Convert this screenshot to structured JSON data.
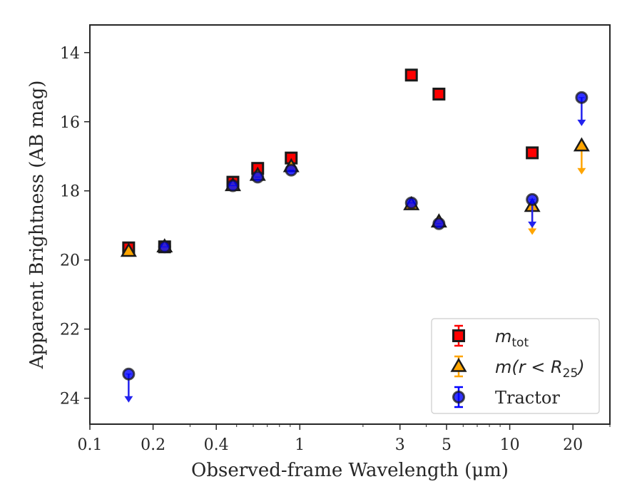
{
  "chart_data": {
    "type": "scatter",
    "title": "",
    "xlabel": "Observed-frame Wavelength (μm)",
    "ylabel": "Apparent Brightness (AB mag)",
    "xscale": "log",
    "xlim": [
      0.1,
      30
    ],
    "ylim": [
      24.75,
      13.2
    ],
    "y_inverted": true,
    "x_ticks": [
      0.1,
      0.2,
      0.4,
      1,
      3,
      5,
      10,
      20
    ],
    "x_tick_labels": [
      "0.1",
      "0.2",
      "0.4",
      "1",
      "3",
      "5",
      "10",
      "20"
    ],
    "y_ticks": [
      14,
      16,
      18,
      20,
      22,
      24
    ],
    "y_tick_labels": [
      "14",
      "16",
      "18",
      "20",
      "22",
      "24"
    ],
    "grid": false,
    "legend_position": "lower-right",
    "series": [
      {
        "name": "m_tot",
        "legend_math": "m",
        "legend_sub": "tot",
        "marker": "square",
        "color": "#ff0000",
        "edge_color": "#1a1a1a",
        "points": [
          {
            "x": 0.153,
            "y": 19.65
          },
          {
            "x": 0.227,
            "y": 19.62
          },
          {
            "x": 0.48,
            "y": 17.75
          },
          {
            "x": 0.63,
            "y": 17.35
          },
          {
            "x": 0.91,
            "y": 17.05
          },
          {
            "x": 3.4,
            "y": 14.65
          },
          {
            "x": 4.6,
            "y": 15.2
          },
          {
            "x": 12.8,
            "y": 16.9
          }
        ]
      },
      {
        "name": "m(r < R25)",
        "legend_math": "m(r < R",
        "legend_sub": "25",
        "legend_close": ")",
        "marker": "triangle",
        "color": "#ffa500",
        "edge_color": "#1a1a1a",
        "points": [
          {
            "x": 0.153,
            "y": 19.75
          },
          {
            "x": 0.227,
            "y": 19.62
          },
          {
            "x": 0.48,
            "y": 17.85
          },
          {
            "x": 0.63,
            "y": 17.55
          },
          {
            "x": 0.91,
            "y": 17.3
          },
          {
            "x": 3.4,
            "y": 18.4
          },
          {
            "x": 4.6,
            "y": 18.9
          },
          {
            "x": 12.8,
            "y": 18.45,
            "upper_limit": true
          },
          {
            "x": 22.0,
            "y": 16.7,
            "upper_limit": true
          }
        ]
      },
      {
        "name": "Tractor",
        "marker": "circle",
        "color": "#0000ff",
        "edge_color": "#1a1a1a",
        "points": [
          {
            "x": 0.153,
            "y": 23.3,
            "upper_limit": true
          },
          {
            "x": 0.227,
            "y": 19.62
          },
          {
            "x": 0.48,
            "y": 17.85
          },
          {
            "x": 0.63,
            "y": 17.6
          },
          {
            "x": 0.91,
            "y": 17.4
          },
          {
            "x": 3.4,
            "y": 18.35
          },
          {
            "x": 4.6,
            "y": 18.95
          },
          {
            "x": 12.8,
            "y": 18.25,
            "upper_limit": true
          },
          {
            "x": 22.0,
            "y": 15.3,
            "upper_limit": true
          }
        ]
      }
    ]
  }
}
